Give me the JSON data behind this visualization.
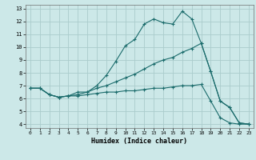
{
  "xlabel": "Humidex (Indice chaleur)",
  "xlim": [
    -0.5,
    23.5
  ],
  "ylim": [
    3.7,
    13.3
  ],
  "xticks": [
    0,
    1,
    2,
    3,
    4,
    5,
    6,
    7,
    8,
    9,
    10,
    11,
    12,
    13,
    14,
    15,
    16,
    17,
    18,
    19,
    20,
    21,
    22,
    23
  ],
  "yticks": [
    4,
    5,
    6,
    7,
    8,
    9,
    10,
    11,
    12,
    13
  ],
  "bg_color": "#cce8e8",
  "grid_color": "#aacccc",
  "line_color": "#1a6b6b",
  "line1_x": [
    0,
    1,
    2,
    3,
    4,
    5,
    6,
    7,
    8,
    9,
    10,
    11,
    12,
    13,
    14,
    15,
    16,
    17,
    18,
    19,
    20,
    21,
    22,
    23
  ],
  "line1_y": [
    6.8,
    6.8,
    6.3,
    6.1,
    6.2,
    6.3,
    6.5,
    7.0,
    7.8,
    8.9,
    10.1,
    10.6,
    11.8,
    12.2,
    11.9,
    11.8,
    12.8,
    12.2,
    10.3,
    8.1,
    5.8,
    5.3,
    4.1,
    4.0
  ],
  "line2_x": [
    0,
    1,
    2,
    3,
    4,
    5,
    6,
    7,
    8,
    9,
    10,
    11,
    12,
    13,
    14,
    15,
    16,
    17,
    18,
    19,
    20,
    21,
    22,
    23
  ],
  "line2_y": [
    6.8,
    6.8,
    6.3,
    6.1,
    6.2,
    6.5,
    6.5,
    6.8,
    7.0,
    7.3,
    7.6,
    7.9,
    8.3,
    8.7,
    9.0,
    9.2,
    9.6,
    9.9,
    10.3,
    8.1,
    5.8,
    5.3,
    4.1,
    4.0
  ],
  "line3_x": [
    0,
    1,
    2,
    3,
    4,
    5,
    6,
    7,
    8,
    9,
    10,
    11,
    12,
    13,
    14,
    15,
    16,
    17,
    18,
    19,
    20,
    21,
    22,
    23
  ],
  "line3_y": [
    6.8,
    6.8,
    6.3,
    6.1,
    6.2,
    6.2,
    6.3,
    6.4,
    6.5,
    6.5,
    6.6,
    6.6,
    6.7,
    6.8,
    6.8,
    6.9,
    7.0,
    7.0,
    7.1,
    5.8,
    4.5,
    4.1,
    4.0,
    4.0
  ]
}
